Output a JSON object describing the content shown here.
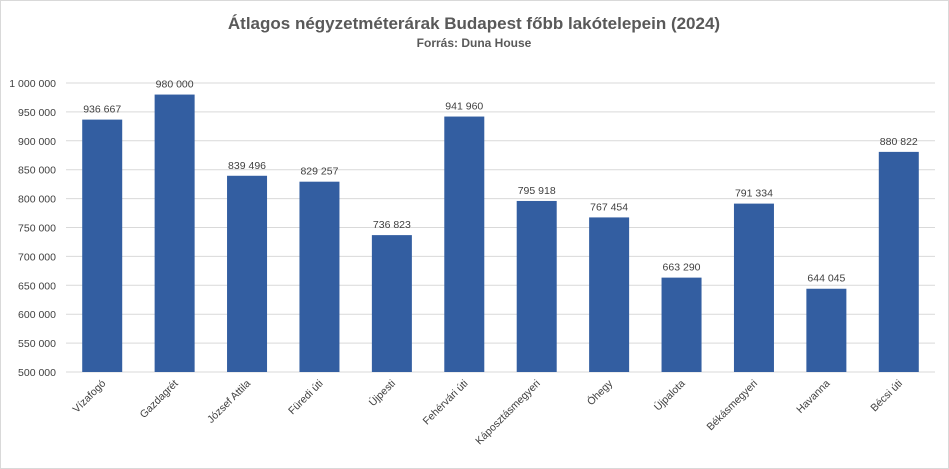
{
  "chart_data": {
    "type": "bar",
    "title": "Átlagos négyzetméterárak Budapest főbb lakótelepein (2024)",
    "subtitle": "Forrás: Duna House",
    "xlabel": "",
    "ylabel": "",
    "ylim": [
      500000,
      1000000
    ],
    "ytick_step": 50000,
    "yticks": [
      "500 000",
      "550 000",
      "600 000",
      "650 000",
      "700 000",
      "750 000",
      "800 000",
      "850 000",
      "900 000",
      "950 000",
      "1 000 000"
    ],
    "grid": true,
    "bar_color": "#335ea1",
    "categories": [
      "Vízafogó",
      "Gazdagrét",
      "József Attila",
      "Füredi úti",
      "Újpesti",
      "Fehérvári úti",
      "Káposztásmegyeri",
      "Óhegy",
      "Újpalota",
      "Békásmegyeri",
      "Havanna",
      "Bécsi úti"
    ],
    "values": [
      936667,
      980000,
      839496,
      829257,
      736823,
      941960,
      795918,
      767454,
      663290,
      791334,
      644045,
      880822
    ],
    "data_labels": [
      "936 667",
      "980 000",
      "839 496",
      "829 257",
      "736 823",
      "941 960",
      "795 918",
      "767 454",
      "663 290",
      "791 334",
      "644 045",
      "880 822"
    ]
  }
}
